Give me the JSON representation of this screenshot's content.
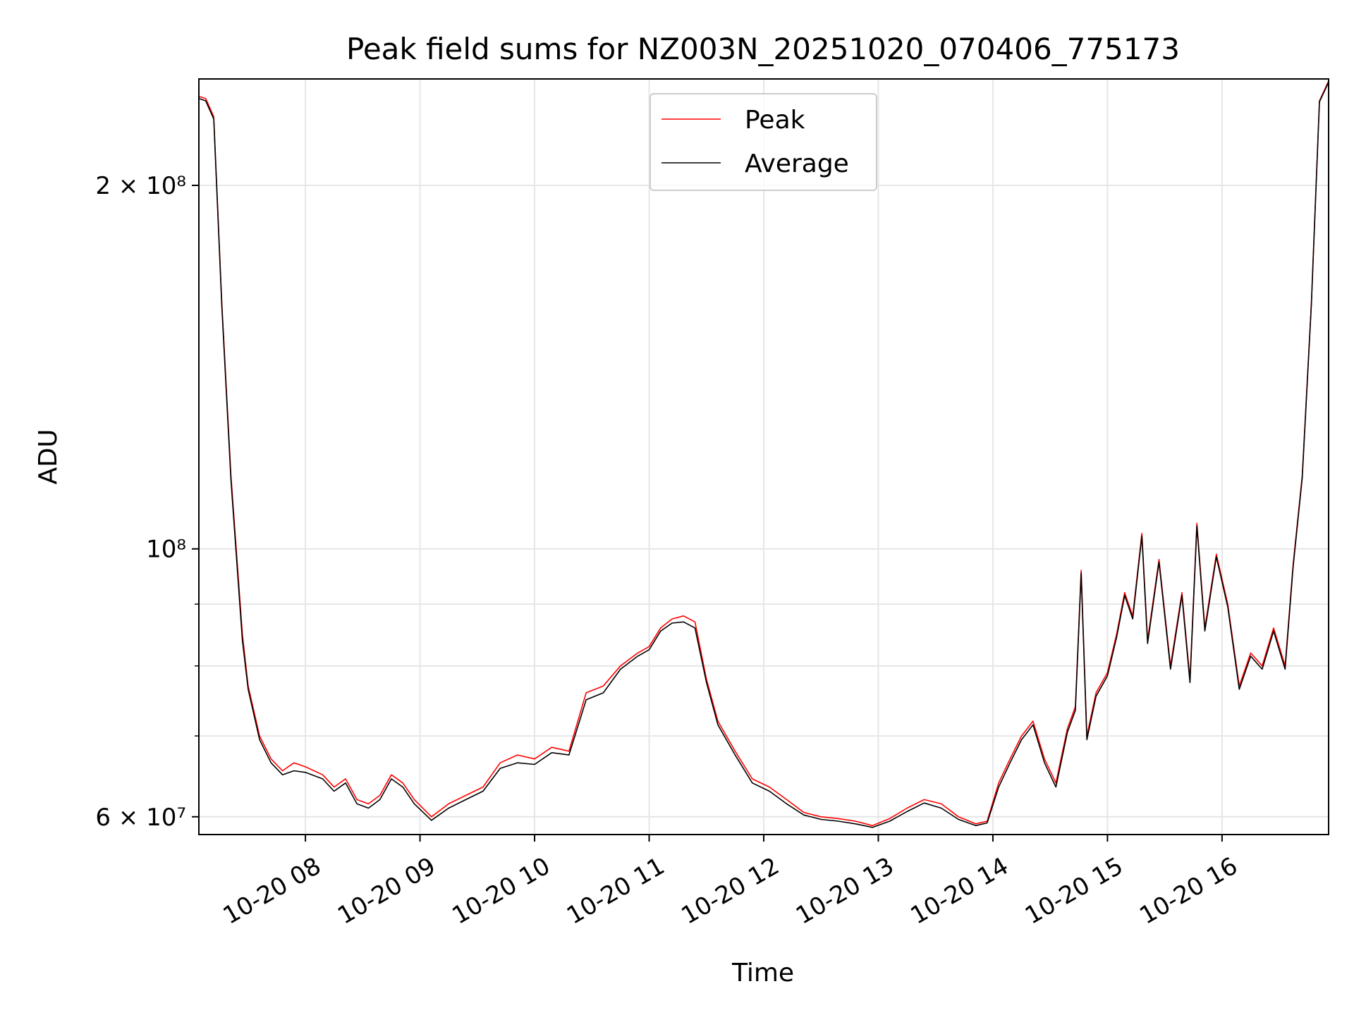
{
  "chart_data": {
    "type": "line",
    "title": "Peak field sums for NZ003N_20251020_070406_775173",
    "xlabel": "Time",
    "ylabel": "ADU",
    "y_scale": "log",
    "ylim": [
      58000000,
      245000000
    ],
    "xlim_hours": [
      7.07,
      16.93
    ],
    "grid": true,
    "legend_position": "upper center",
    "x_ticks": [
      {
        "value": 8,
        "label": "10-20 08"
      },
      {
        "value": 9,
        "label": "10-20 09"
      },
      {
        "value": 10,
        "label": "10-20 10"
      },
      {
        "value": 11,
        "label": "10-20 11"
      },
      {
        "value": 12,
        "label": "10-20 12"
      },
      {
        "value": 13,
        "label": "10-20 13"
      },
      {
        "value": 14,
        "label": "10-20 14"
      },
      {
        "value": 15,
        "label": "10-20 15"
      },
      {
        "value": 16,
        "label": "10-20 16"
      }
    ],
    "y_ticks": [
      {
        "value": 60000000,
        "label": "6 × 10⁷"
      },
      {
        "value": 100000000,
        "label": "10⁸"
      },
      {
        "value": 200000000,
        "label": "2 × 10⁸"
      }
    ],
    "y_minor_ticks": [
      70000000,
      80000000,
      90000000
    ],
    "series": [
      {
        "name": "Peak",
        "color": "#ff0000",
        "x": [
          7.07,
          7.13,
          7.2,
          7.27,
          7.35,
          7.45,
          7.5,
          7.6,
          7.7,
          7.8,
          7.9,
          8.0,
          8.15,
          8.25,
          8.35,
          8.45,
          8.55,
          8.65,
          8.75,
          8.85,
          8.95,
          9.1,
          9.25,
          9.4,
          9.55,
          9.7,
          9.85,
          10.0,
          10.15,
          10.3,
          10.45,
          10.6,
          10.75,
          10.9,
          11.0,
          11.1,
          11.2,
          11.3,
          11.4,
          11.5,
          11.6,
          11.75,
          11.9,
          12.05,
          12.2,
          12.35,
          12.5,
          12.65,
          12.8,
          12.95,
          13.1,
          13.25,
          13.4,
          13.55,
          13.7,
          13.85,
          13.95,
          14.05,
          14.15,
          14.25,
          14.35,
          14.45,
          14.55,
          14.65,
          14.72,
          14.77,
          14.82,
          14.9,
          15.0,
          15.08,
          15.15,
          15.22,
          15.3,
          15.35,
          15.45,
          15.55,
          15.65,
          15.72,
          15.78,
          15.85,
          15.95,
          16.05,
          16.15,
          16.25,
          16.35,
          16.45,
          16.55,
          16.62,
          16.7,
          16.78,
          16.85,
          16.93
        ],
        "values": [
          237000000,
          236000000,
          228000000,
          160000000,
          115000000,
          85000000,
          77000000,
          70000000,
          67000000,
          65500000,
          66500000,
          66000000,
          65000000,
          63500000,
          64500000,
          62000000,
          61500000,
          62500000,
          65000000,
          64000000,
          62000000,
          60000000,
          61500000,
          62500000,
          63500000,
          66500000,
          67500000,
          67000000,
          68500000,
          68000000,
          76000000,
          77000000,
          80000000,
          82000000,
          83000000,
          86000000,
          87500000,
          88000000,
          87000000,
          78000000,
          72000000,
          68000000,
          64500000,
          63500000,
          62000000,
          60500000,
          60000000,
          59800000,
          59500000,
          59000000,
          59800000,
          61000000,
          62000000,
          61500000,
          60000000,
          59200000,
          59500000,
          64000000,
          67000000,
          70000000,
          72000000,
          67000000,
          64000000,
          71000000,
          74000000,
          96000000,
          70000000,
          76000000,
          79000000,
          85000000,
          92000000,
          88000000,
          103000000,
          84000000,
          98000000,
          80000000,
          92000000,
          78000000,
          105000000,
          86000000,
          99000000,
          90000000,
          77000000,
          82000000,
          80000000,
          86000000,
          80000000,
          97000000,
          115000000,
          160000000,
          235000000,
          244000000
        ]
      },
      {
        "name": "Average",
        "color": "#000000",
        "x": [
          7.07,
          7.13,
          7.2,
          7.27,
          7.35,
          7.45,
          7.5,
          7.6,
          7.7,
          7.8,
          7.9,
          8.0,
          8.15,
          8.25,
          8.35,
          8.45,
          8.55,
          8.65,
          8.75,
          8.85,
          8.95,
          9.1,
          9.25,
          9.4,
          9.55,
          9.7,
          9.85,
          10.0,
          10.15,
          10.3,
          10.45,
          10.6,
          10.75,
          10.9,
          11.0,
          11.1,
          11.2,
          11.3,
          11.4,
          11.5,
          11.6,
          11.75,
          11.9,
          12.05,
          12.2,
          12.35,
          12.5,
          12.65,
          12.8,
          12.95,
          13.1,
          13.25,
          13.4,
          13.55,
          13.7,
          13.85,
          13.95,
          14.05,
          14.15,
          14.25,
          14.35,
          14.45,
          14.55,
          14.65,
          14.72,
          14.77,
          14.82,
          14.9,
          15.0,
          15.08,
          15.15,
          15.22,
          15.3,
          15.35,
          15.45,
          15.55,
          15.65,
          15.72,
          15.78,
          15.85,
          15.95,
          16.05,
          16.15,
          16.25,
          16.35,
          16.45,
          16.55,
          16.62,
          16.7,
          16.78,
          16.85,
          16.93
        ],
        "values": [
          236000000,
          235000000,
          227000000,
          159000000,
          114000000,
          84000000,
          76500000,
          69500000,
          66500000,
          65000000,
          65500000,
          65300000,
          64500000,
          63000000,
          64000000,
          61500000,
          61000000,
          62000000,
          64500000,
          63500000,
          61500000,
          59600000,
          61000000,
          62000000,
          63000000,
          65800000,
          66500000,
          66300000,
          67800000,
          67500000,
          75000000,
          76000000,
          79500000,
          81500000,
          82500000,
          85500000,
          86800000,
          87000000,
          86000000,
          77500000,
          71500000,
          67500000,
          64000000,
          63000000,
          61500000,
          60200000,
          59700000,
          59500000,
          59200000,
          58800000,
          59500000,
          60600000,
          61600000,
          61000000,
          59700000,
          59000000,
          59300000,
          63500000,
          66500000,
          69500000,
          71500000,
          66500000,
          63500000,
          70500000,
          73500000,
          95500000,
          69500000,
          75500000,
          78500000,
          84500000,
          91500000,
          87500000,
          102500000,
          83500000,
          97500000,
          79500000,
          91500000,
          77500000,
          104500000,
          85500000,
          98500000,
          89500000,
          76500000,
          81500000,
          79500000,
          85500000,
          79500000,
          96500000,
          114500000,
          159500000,
          234500000,
          243500000
        ]
      }
    ]
  }
}
